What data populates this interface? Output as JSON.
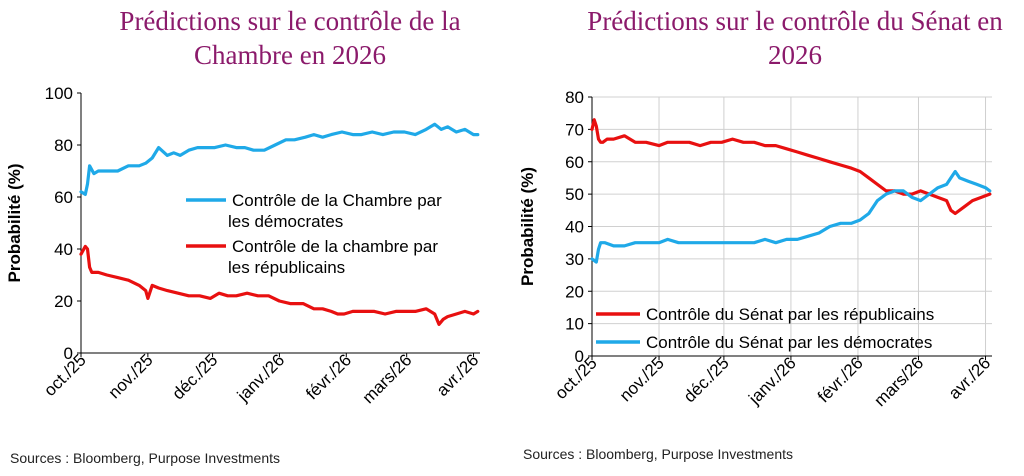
{
  "chart_data": [
    {
      "type": "line",
      "title": "Prédictions sur le contrôle de la Chambre en 2026",
      "ylabel": "Probabilité (%)",
      "ylim": [
        0,
        100
      ],
      "yticks": [
        "0",
        "20",
        "40",
        "60",
        "80",
        "100"
      ],
      "x_tick_labels": [
        "oct./25",
        "nov./25",
        "déc./25",
        "janv./26",
        "févr./26",
        "mars/26",
        "avr./26"
      ],
      "x_tick_days": [
        0,
        31,
        61,
        92,
        123,
        151,
        182
      ],
      "x_range_days": [
        0,
        185
      ],
      "series": [
        {
          "name": "Contrôle de la Chambre par les démocrates",
          "color": "#1FA9E8",
          "x_days": [
            0,
            2,
            3,
            4,
            6,
            8,
            12,
            17,
            22,
            27,
            30,
            33,
            36,
            40,
            43,
            46,
            50,
            54,
            58,
            62,
            67,
            72,
            76,
            80,
            85,
            90,
            95,
            99,
            104,
            108,
            112,
            116,
            121,
            126,
            130,
            135,
            140,
            145,
            150,
            155,
            160,
            164,
            167,
            170,
            174,
            178,
            182,
            184
          ],
          "values": [
            62,
            61,
            65,
            72,
            69,
            70,
            70,
            70,
            72,
            72,
            73,
            75,
            79,
            76,
            77,
            76,
            78,
            79,
            79,
            79,
            80,
            79,
            79,
            78,
            78,
            80,
            82,
            82,
            83,
            84,
            83,
            84,
            85,
            84,
            84,
            85,
            84,
            85,
            85,
            84,
            86,
            88,
            86,
            87,
            85,
            86,
            84,
            84
          ]
        },
        {
          "name": "Contrôle de la chambre par les républicains",
          "color": "#E81010",
          "x_days": [
            0,
            2,
            3,
            4,
            5,
            8,
            12,
            17,
            22,
            27,
            30,
            31,
            33,
            36,
            40,
            45,
            50,
            55,
            60,
            64,
            68,
            72,
            77,
            82,
            87,
            92,
            97,
            103,
            108,
            112,
            116,
            119,
            122,
            126,
            131,
            136,
            141,
            146,
            150,
            155,
            160,
            164,
            166,
            168,
            170,
            174,
            178,
            182,
            184
          ],
          "values": [
            38,
            41,
            40,
            33,
            31,
            31,
            30,
            29,
            28,
            26,
            24,
            21,
            26,
            25,
            24,
            23,
            22,
            22,
            21,
            23,
            22,
            22,
            23,
            22,
            22,
            20,
            19,
            19,
            17,
            17,
            16,
            15,
            15,
            16,
            16,
            16,
            15,
            16,
            16,
            16,
            17,
            15,
            11,
            13,
            14,
            15,
            16,
            15,
            16
          ]
        }
      ]
    },
    {
      "type": "line",
      "title": "Prédictions sur le contrôle du Sénat en 2026",
      "ylabel": "Probabilité (%)",
      "ylim": [
        0,
        80
      ],
      "yticks": [
        "0",
        "10",
        "20",
        "30",
        "40",
        "50",
        "60",
        "70",
        "80"
      ],
      "x_tick_labels": [
        "oct./25",
        "nov./25",
        "déc./25",
        "janv./26",
        "févr./26",
        "mars/26",
        "avr./26"
      ],
      "x_tick_days": [
        0,
        31,
        61,
        92,
        123,
        151,
        182
      ],
      "x_range_days": [
        0,
        185
      ],
      "series": [
        {
          "name": "Contrôle du Sénat par les républicains",
          "color": "#E81010",
          "x_days": [
            0,
            1,
            2,
            3,
            4,
            5,
            7,
            10,
            15,
            20,
            25,
            31,
            35,
            40,
            45,
            50,
            55,
            60,
            65,
            70,
            75,
            80,
            85,
            90,
            95,
            100,
            105,
            110,
            115,
            120,
            124,
            128,
            132,
            136,
            140,
            144,
            148,
            152,
            156,
            160,
            164,
            166,
            168,
            172,
            176,
            180,
            184
          ],
          "values": [
            70,
            73,
            71,
            67,
            66,
            66,
            67,
            67,
            68,
            66,
            66,
            65,
            66,
            66,
            66,
            65,
            66,
            66,
            67,
            66,
            66,
            65,
            65,
            64,
            63,
            62,
            61,
            60,
            59,
            58,
            57,
            55,
            53,
            51,
            51,
            50,
            50,
            51,
            50,
            49,
            48,
            45,
            44,
            46,
            48,
            49,
            50
          ]
        },
        {
          "name": "Contrôle du Sénat par les démocrates",
          "color": "#1FA9E8",
          "x_days": [
            0,
            2,
            3,
            4,
            6,
            10,
            15,
            20,
            25,
            31,
            35,
            40,
            45,
            50,
            55,
            60,
            65,
            70,
            75,
            80,
            85,
            90,
            95,
            100,
            105,
            110,
            115,
            120,
            124,
            128,
            132,
            136,
            140,
            144,
            148,
            152,
            156,
            160,
            164,
            166,
            168,
            170,
            174,
            178,
            182,
            184
          ],
          "values": [
            30,
            29,
            33,
            35,
            35,
            34,
            34,
            35,
            35,
            35,
            36,
            35,
            35,
            35,
            35,
            35,
            35,
            35,
            35,
            36,
            35,
            36,
            36,
            37,
            38,
            40,
            41,
            41,
            42,
            44,
            48,
            50,
            51,
            51,
            49,
            48,
            50,
            52,
            53,
            55,
            57,
            55,
            54,
            53,
            52,
            51
          ]
        }
      ]
    }
  ],
  "left": {
    "source": "Sources : Bloomberg, Purpose Investments"
  },
  "right": {
    "source": "Sources : Bloomberg, Purpose Investments"
  }
}
